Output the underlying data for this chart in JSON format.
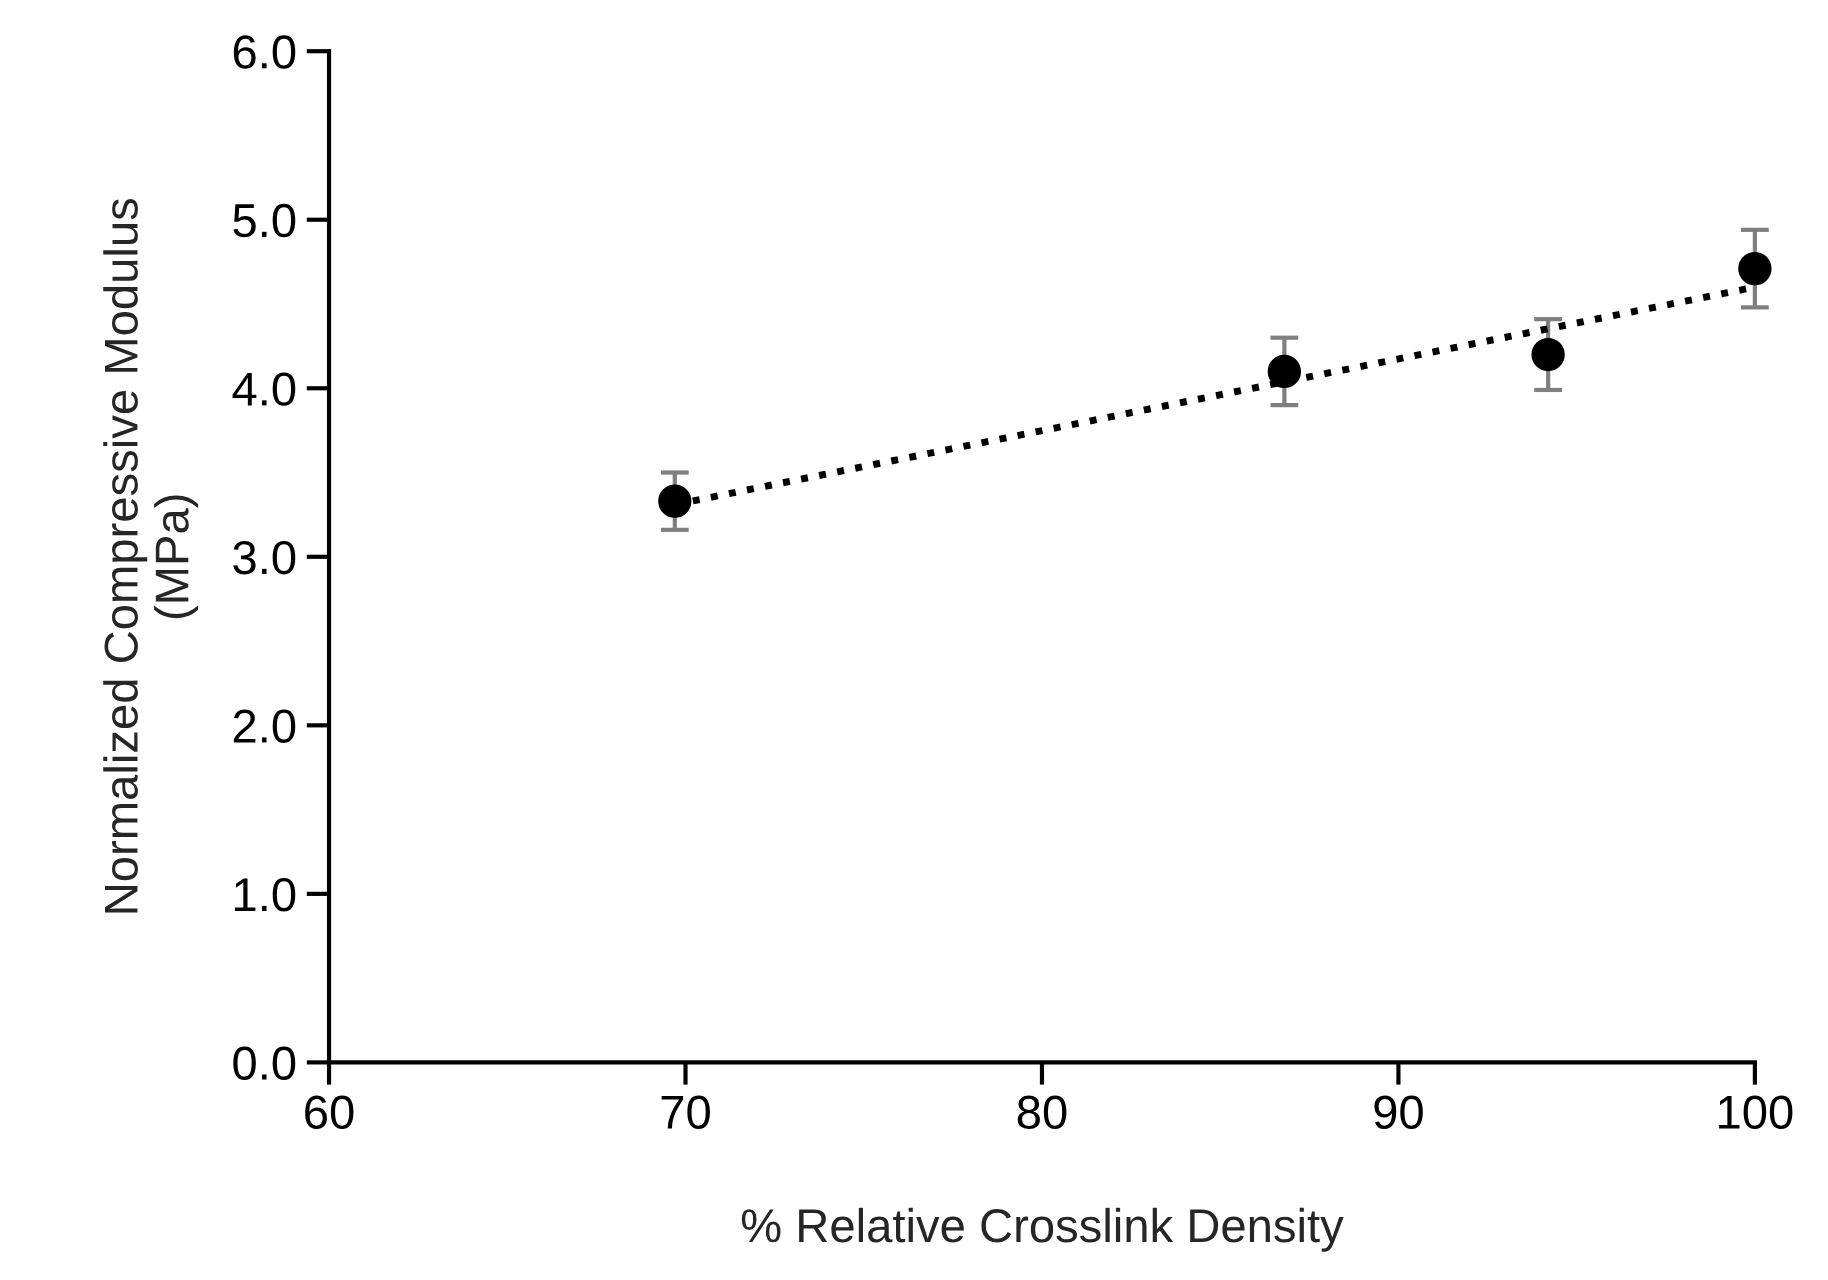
{
  "chart_data": {
    "type": "scatter",
    "xlabel": "% Relative Crosslink Density",
    "ylabel": "Normalized Compressive Modulus\n(MPa)",
    "xlim": [
      60,
      100
    ],
    "xticks": [
      60,
      70,
      80,
      90,
      100
    ],
    "ylim": [
      0,
      6
    ],
    "yticks": [
      {
        "value": 0,
        "label": "0.0"
      },
      {
        "value": 1,
        "label": "1.0"
      },
      {
        "value": 2,
        "label": "2.0"
      },
      {
        "value": 3,
        "label": "3.0"
      },
      {
        "value": 4,
        "label": "4.0"
      },
      {
        "value": 5,
        "label": "5.0"
      },
      {
        "value": 6,
        "label": "6.0"
      }
    ],
    "grid": false,
    "series": [
      {
        "color": "#000000",
        "marker": "circle",
        "x": [
          69.7,
          86.8,
          94.2,
          100
        ],
        "values": [
          3.33,
          4.1,
          4.2,
          4.71
        ],
        "errors": [
          0.17,
          0.2,
          0.21,
          0.23
        ]
      },
      {
        "type": "line",
        "color": "#000000",
        "line_style": "dotted",
        "marker": "none",
        "x": [
          69.7,
          100
        ],
        "values": [
          3.31,
          4.6
        ]
      }
    ]
  }
}
